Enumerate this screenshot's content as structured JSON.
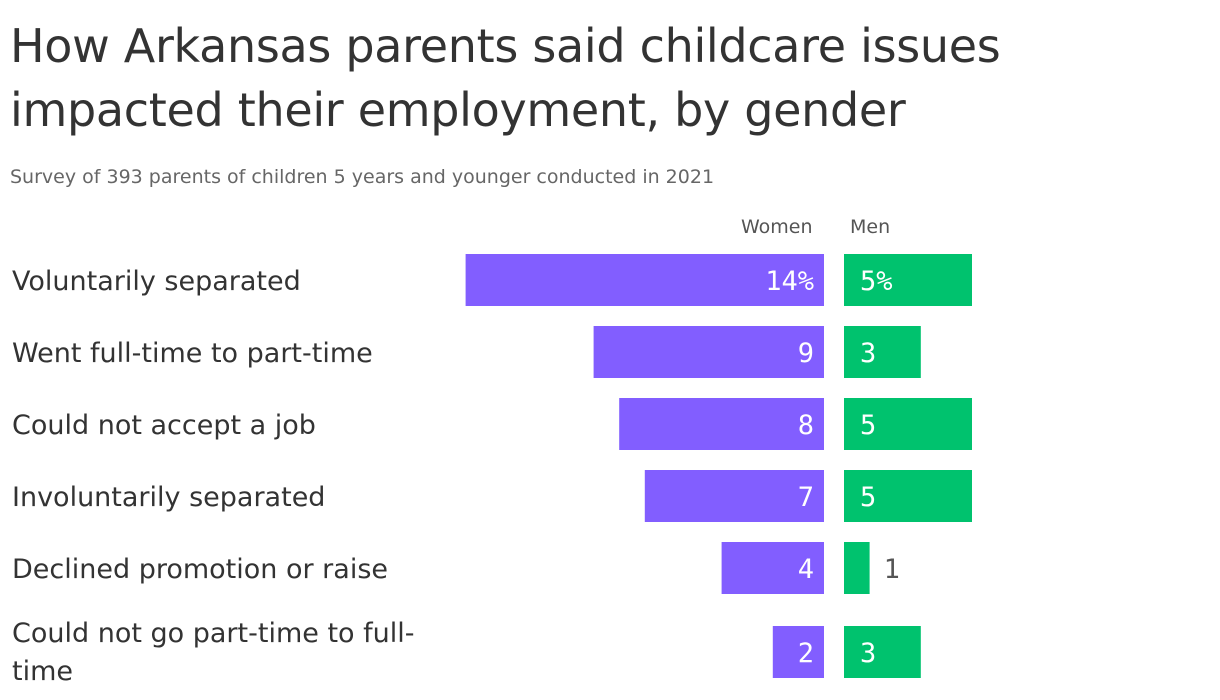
{
  "title": "How Arkansas parents said childcare issues impacted their employment, by gender",
  "subtitle": "Survey of 393 parents of children 5 years and younger conducted in 2021",
  "colors": {
    "women": "#825EFF",
    "men": "#00C26E"
  },
  "chart_data": {
    "type": "bar",
    "orientation": "horizontal",
    "categories": [
      "Voluntarily separated",
      "Went full-time to part-time",
      "Could not accept a job",
      "Involuntarily separated",
      "Declined promotion or raise",
      "Could not go part-time to full-time"
    ],
    "category_label_lines": [
      [
        "Voluntarily separated"
      ],
      [
        "Went full-time to part-time"
      ],
      [
        "Could not accept a job"
      ],
      [
        "Involuntarily separated"
      ],
      [
        "Declined promotion or raise"
      ],
      [
        "Could not go part-time to full-",
        "time"
      ]
    ],
    "series": [
      {
        "name": "Women",
        "values": [
          14,
          9,
          8,
          7,
          4,
          2
        ],
        "labels": [
          "14%",
          "9",
          "8",
          "7",
          "4",
          "2"
        ]
      },
      {
        "name": "Men",
        "values": [
          5,
          3,
          5,
          5,
          1,
          3
        ],
        "labels": [
          "5%",
          "3",
          "5",
          "5",
          "1",
          "3"
        ]
      }
    ],
    "unit": "%",
    "legend": "top, above bars",
    "grid": false
  }
}
